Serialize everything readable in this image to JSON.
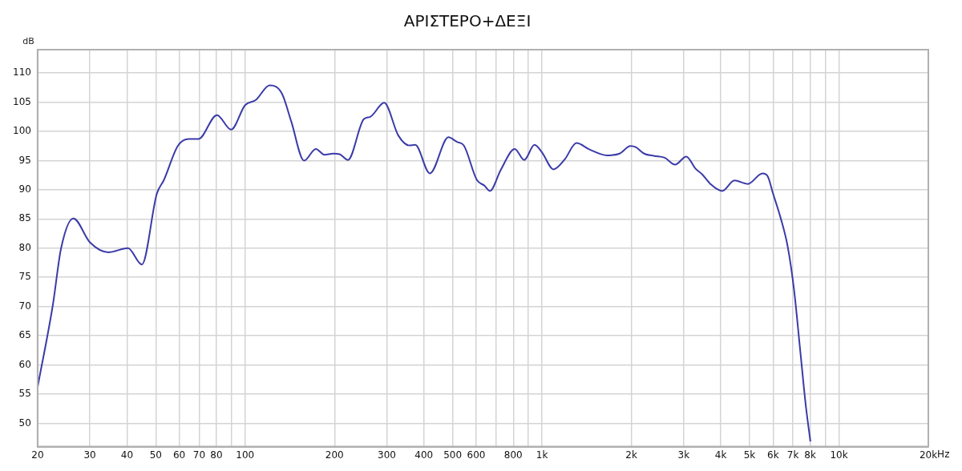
{
  "chart_data": {
    "type": "line",
    "title": "ΑΡΙΣΤΕΡΟ+ΔΕΞΙ",
    "ylabel": "dB",
    "log": "x",
    "grid": true,
    "legend": false,
    "marker": "none",
    "line_style": "solid",
    "xlim": [
      20,
      20000
    ],
    "ylim": [
      46,
      114
    ],
    "xticks": [
      20,
      30,
      40,
      50,
      60,
      70,
      80,
      {
        "value": 90,
        "label": null
      },
      100,
      200,
      300,
      400,
      500,
      600,
      {
        "value": 700,
        "label": null
      },
      800,
      {
        "value": 900,
        "label": null
      },
      {
        "value": 1000,
        "label": "1k"
      },
      {
        "value": 2000,
        "label": "2k"
      },
      {
        "value": 3000,
        "label": "3k"
      },
      {
        "value": 4000,
        "label": "4k"
      },
      {
        "value": 5000,
        "label": "5k"
      },
      {
        "value": 6000,
        "label": "6k"
      },
      {
        "value": 7000,
        "label": "7k"
      },
      {
        "value": 8000,
        "label": "8k"
      },
      {
        "value": 9000,
        "label": null
      },
      {
        "value": 10000,
        "label": "10k"
      },
      {
        "value": 20000,
        "label": "20k"
      }
    ],
    "xlabel": "Hz",
    "yticks": [
      50,
      55,
      60,
      65,
      70,
      75,
      80,
      85,
      90,
      95,
      100,
      105,
      110
    ],
    "x": [
      20,
      22.5,
      24,
      26.4,
      30,
      34.6,
      40.3,
      44.9,
      50.4,
      53.3,
      59.3,
      64.7,
      69.6,
      80.4,
      89.7,
      100,
      108.7,
      121,
      133,
      143,
      158,
      173,
      185,
      198,
      208,
      222,
      251,
      264,
      294,
      328,
      357,
      374,
      419,
      484,
      517,
      545,
      603,
      640,
      667,
      726,
      809,
      871,
      943,
      1000,
      1093,
      1192,
      1306,
      1446,
      1654,
      1825,
      1985,
      2067,
      2206,
      2387,
      2588,
      2806,
      3060,
      3290,
      3454,
      3690,
      4042,
      4447,
      4927,
      5527,
      5757,
      5994,
      6368,
      6718,
      7062,
      7424,
      7726,
      8013
    ],
    "series": [
      {
        "color": "#3b3ba8",
        "values": [
          56.2,
          70.2,
          80.0,
          85.1,
          81.0,
          79.3,
          80.0,
          77.2,
          89.3,
          91.7,
          97.5,
          98.7,
          98.7,
          102.8,
          100.3,
          104.5,
          105.4,
          107.9,
          106.5,
          101.7,
          95.0,
          97.0,
          96.0,
          96.2,
          96.1,
          95.1,
          102.1,
          102.5,
          104.9,
          99.3,
          97.6,
          97.7,
          92.8,
          99.0,
          98.2,
          97.6,
          91.7,
          90.7,
          89.8,
          93.4,
          97.0,
          95.1,
          97.7,
          96.4,
          93.5,
          95.2,
          98.0,
          96.9,
          95.9,
          96.2,
          97.5,
          97.3,
          96.2,
          95.8,
          95.5,
          94.3,
          95.7,
          93.6,
          92.7,
          91.0,
          89.8,
          91.6,
          91.0,
          92.8,
          92.3,
          89.4,
          85.1,
          80.3,
          72.8,
          61.9,
          53.2,
          46.9
        ]
      }
    ]
  }
}
